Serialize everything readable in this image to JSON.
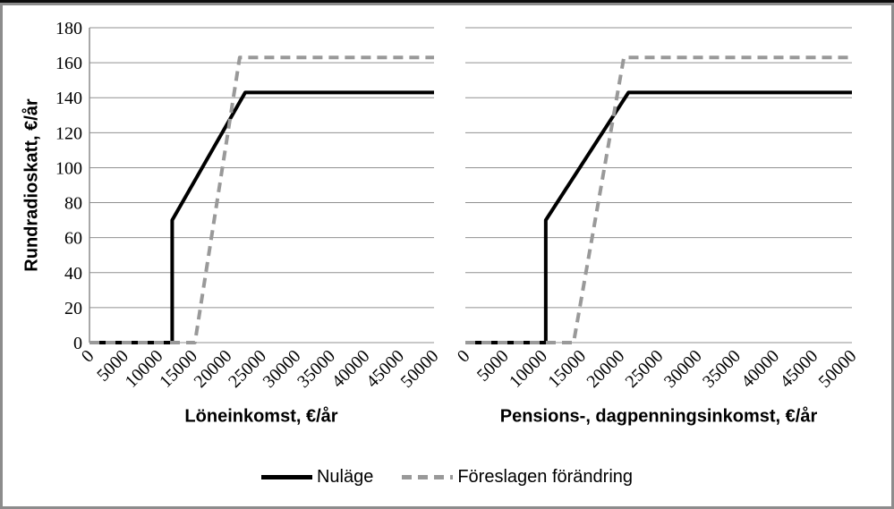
{
  "figure": {
    "y_axis": {
      "title": "Rundradioskatt, €/år"
    },
    "legend": {
      "position": "bottom",
      "items": [
        {
          "label": "Nuläge",
          "style": "solid",
          "color": "#000000"
        },
        {
          "label": "Föreslagen förändring",
          "style": "dashed",
          "color": "#999999"
        }
      ]
    },
    "colors": {
      "grid": "#909090",
      "axis": "#8c8c8c",
      "frame": "#8c8c8c",
      "nulage": "#000000",
      "foreslagen": "#999999"
    }
  },
  "chart_data": [
    {
      "type": "line",
      "title": "",
      "xlabel": "Löneinkomst, €/år",
      "ylabel": "Rundradioskatt, €/år",
      "xlim": [
        0,
        50000
      ],
      "ylim": [
        0,
        180
      ],
      "grid": true,
      "x_ticks": [
        0,
        5000,
        10000,
        15000,
        20000,
        25000,
        30000,
        35000,
        40000,
        45000,
        50000
      ],
      "y_ticks": [
        0,
        20,
        40,
        60,
        80,
        100,
        120,
        140,
        160,
        180
      ],
      "series": [
        {
          "name": "Nuläge",
          "points": [
            [
              0,
              0
            ],
            [
              12000,
              0
            ],
            [
              12000,
              70
            ],
            [
              22600,
              143
            ],
            [
              50000,
              143
            ]
          ]
        },
        {
          "name": "Föreslagen förändring",
          "points": [
            [
              0,
              0
            ],
            [
              15300,
              0
            ],
            [
              21800,
              163
            ],
            [
              50000,
              163
            ]
          ]
        }
      ]
    },
    {
      "type": "line",
      "title": "",
      "xlabel": "Pensions-, dagpenningsinkomst, €/år",
      "ylabel": "Rundradioskatt, €/år",
      "xlim": [
        0,
        50000
      ],
      "ylim": [
        0,
        180
      ],
      "grid": true,
      "x_ticks": [
        0,
        5000,
        10000,
        15000,
        20000,
        25000,
        30000,
        35000,
        40000,
        45000,
        50000
      ],
      "y_ticks": [
        0,
        20,
        40,
        60,
        80,
        100,
        120,
        140,
        160,
        180
      ],
      "series": [
        {
          "name": "Nuläge",
          "points": [
            [
              0,
              0
            ],
            [
              10400,
              0
            ],
            [
              10400,
              70
            ],
            [
              21100,
              143
            ],
            [
              50000,
              143
            ]
          ]
        },
        {
          "name": "Föreslagen förändring",
          "points": [
            [
              0,
              0
            ],
            [
              14000,
              0
            ],
            [
              20500,
              163
            ],
            [
              50000,
              163
            ]
          ]
        }
      ]
    }
  ]
}
